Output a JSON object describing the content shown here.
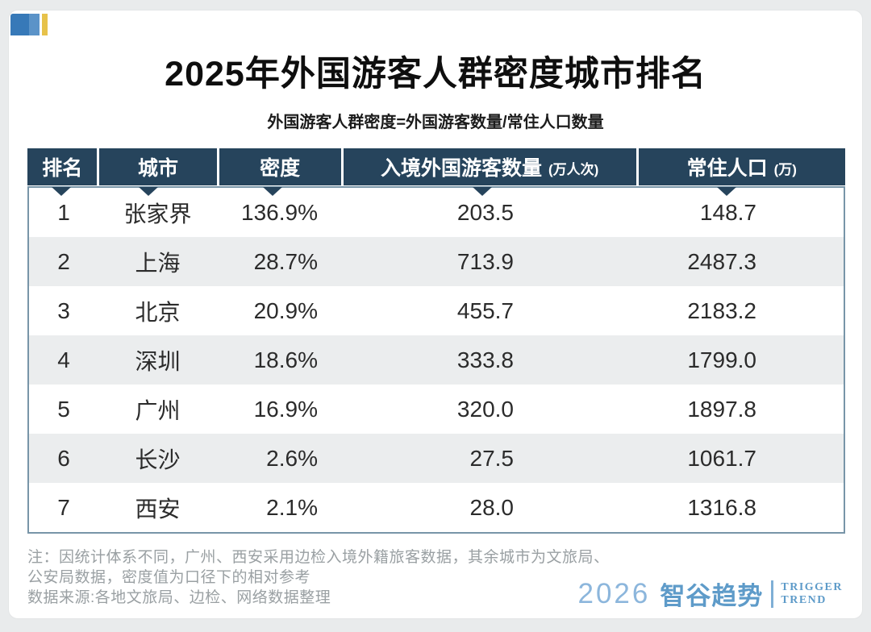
{
  "header": {
    "title": "2025年外国游客人群密度城市排名",
    "subtitle": "外国游客人群密度=外国游客数量/常住人口数量"
  },
  "chart_data": {
    "type": "table",
    "title": "2025年外国游客人群密度城市排名",
    "columns": [
      {
        "label": "排名",
        "unit": ""
      },
      {
        "label": "城市",
        "unit": ""
      },
      {
        "label": "密度",
        "unit": ""
      },
      {
        "label": "入境外国游客数量",
        "unit": "(万人次)"
      },
      {
        "label": "常住人口",
        "unit": "(万)"
      }
    ],
    "rows": [
      {
        "rank": "1",
        "city": "张家界",
        "density": "136.9%",
        "visitors": "203.5",
        "population": "148.7"
      },
      {
        "rank": "2",
        "city": "上海",
        "density": "28.7%",
        "visitors": "713.9",
        "population": "2487.3"
      },
      {
        "rank": "3",
        "city": "北京",
        "density": "20.9%",
        "visitors": "455.7",
        "population": "2183.2"
      },
      {
        "rank": "4",
        "city": "深圳",
        "density": "18.6%",
        "visitors": "333.8",
        "population": "1799.0"
      },
      {
        "rank": "5",
        "city": "广州",
        "density": "16.9%",
        "visitors": "320.0",
        "population": "1897.8"
      },
      {
        "rank": "6",
        "city": "长沙",
        "density": "2.6%",
        "visitors": "27.5",
        "population": "1061.7"
      },
      {
        "rank": "7",
        "city": "西安",
        "density": "2.1%",
        "visitors": "28.0",
        "population": "1316.8"
      }
    ]
  },
  "notes": {
    "line1": "注：因统计体系不同，广州、西安采用边检入境外籍旅客数据，其余城市为文旅局、",
    "line2": "公安局数据，密度值为口径下的相对参考",
    "line3": "数据来源:各地文旅局、边检、网络数据整理"
  },
  "footer": {
    "logo_year": "2026",
    "logo_brand": "智谷趋势",
    "logo_tag1": "TRIGGER",
    "logo_tag2": "TREND"
  },
  "colors": {
    "header_bg": "#26445c",
    "row_alt_bg": "#ebedee",
    "table_border": "#7895a8",
    "logo_blue": "#5e9bc9",
    "deco_dark_blue": "#3779b8",
    "deco_light_blue": "#5b93c8",
    "deco_yellow": "#e7c24a"
  }
}
